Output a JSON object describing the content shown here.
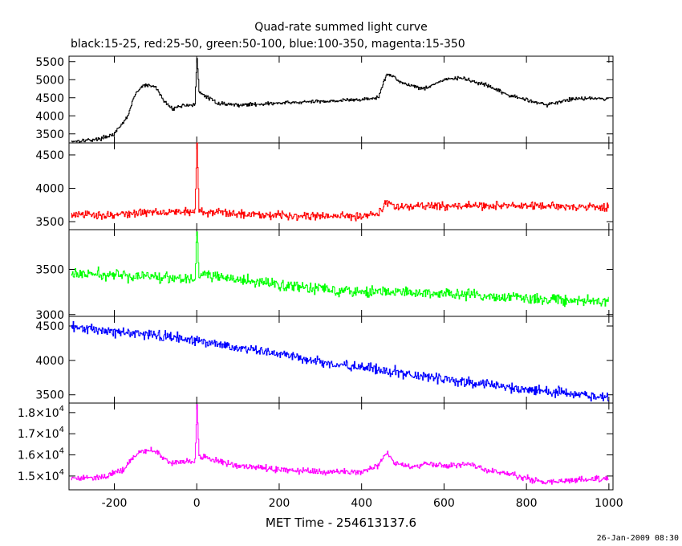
{
  "title": "Quad-rate summed light curve",
  "subtitle": "black:15-25, red:25-50, green:50-100, blue:100-350, magenta:15-350",
  "timestamp": "26-Jan-2009 08:30",
  "chart_data": {
    "type": "line",
    "title": "Quad-rate summed light curve",
    "subtitle": "black:15-25, red:25-50, green:50-100, blue:100-350, magenta:15-350",
    "xlabel": "MET Time - 254613137.6",
    "xlim": [
      -310,
      1010
    ],
    "xticks": [
      -200,
      0,
      200,
      400,
      600,
      800,
      1000
    ],
    "xtick_labels": [
      "-200",
      "0",
      "200",
      "400",
      "600",
      "800",
      "1000"
    ],
    "grid": false,
    "panels": [
      {
        "name": "15-25",
        "color": "#000000",
        "ylim": [
          3250,
          5650
        ],
        "yticks": [
          3500,
          4000,
          4500,
          5000,
          5500
        ],
        "ytick_labels": [
          "3500",
          "4000",
          "4500",
          "5000",
          "5500"
        ],
        "noise": 45,
        "x": [
          -300,
          -240,
          -200,
          -170,
          -150,
          -130,
          -100,
          -80,
          -60,
          -30,
          -5,
          0,
          5,
          20,
          50,
          100,
          200,
          300,
          400,
          440,
          460,
          475,
          500,
          550,
          600,
          640,
          700,
          760,
          800,
          850,
          900,
          950,
          1000
        ],
        "y": [
          3300,
          3350,
          3500,
          3950,
          4600,
          4850,
          4800,
          4400,
          4200,
          4300,
          4300,
          5600,
          4650,
          4550,
          4350,
          4300,
          4350,
          4400,
          4450,
          4500,
          5150,
          5100,
          4900,
          4750,
          5000,
          5050,
          4850,
          4550,
          4450,
          4300,
          4450,
          4500,
          4450
        ]
      },
      {
        "name": "25-50",
        "color": "#ff0000",
        "ylim": [
          3380,
          4680
        ],
        "yticks": [
          3500,
          4000,
          4500
        ],
        "ytick_labels": [
          "3500",
          "4000",
          "4500"
        ],
        "noise": 55,
        "x": [
          -300,
          -200,
          -100,
          -5,
          0,
          5,
          100,
          200,
          300,
          400,
          440,
          460,
          480,
          550,
          700,
          1000
        ],
        "y": [
          3600,
          3600,
          3650,
          3650,
          4650,
          3650,
          3620,
          3600,
          3580,
          3590,
          3620,
          3800,
          3720,
          3730,
          3740,
          3720
        ]
      },
      {
        "name": "50-100",
        "color": "#00ff00",
        "ylim": [
          2980,
          3940
        ],
        "yticks": [
          3000,
          3500
        ],
        "ytick_labels": [
          "3000",
          "3500"
        ],
        "noise": 55,
        "x": [
          -300,
          -100,
          -5,
          0,
          5,
          100,
          200,
          300,
          400,
          600,
          800,
          1000
        ],
        "y": [
          3450,
          3420,
          3400,
          3920,
          3450,
          3380,
          3330,
          3290,
          3260,
          3230,
          3180,
          3140
        ]
      },
      {
        "name": "100-350",
        "color": "#0000ff",
        "ylim": [
          3380,
          4640
        ],
        "yticks": [
          3500,
          4000,
          4500
        ],
        "ytick_labels": [
          "3500",
          "4000",
          "4500"
        ],
        "noise": 65,
        "x": [
          -300,
          -200,
          -100,
          0,
          100,
          200,
          300,
          400,
          500,
          600,
          700,
          800,
          900,
          1000
        ],
        "y": [
          4470,
          4420,
          4370,
          4280,
          4190,
          4090,
          3970,
          3900,
          3810,
          3730,
          3650,
          3580,
          3520,
          3460
        ]
      },
      {
        "name": "15-350",
        "color": "#ff00ff",
        "ylim": [
          14350,
          18450
        ],
        "yticks": [
          15000,
          16000,
          17000,
          18000
        ],
        "ytick_labels": [
          "1.5×10",
          "1.6×10",
          "1.7×10",
          "1.8×10"
        ],
        "ytick_exponent": "4",
        "noise": 130,
        "x": [
          -300,
          -220,
          -180,
          -140,
          -100,
          -80,
          -60,
          -30,
          -5,
          0,
          5,
          50,
          100,
          200,
          300,
          400,
          440,
          460,
          480,
          520,
          560,
          600,
          650,
          700,
          800,
          850,
          900,
          1000
        ],
        "y": [
          14900,
          15000,
          15300,
          16200,
          16200,
          15800,
          15600,
          15700,
          15700,
          18400,
          15900,
          15700,
          15500,
          15300,
          15200,
          15200,
          15500,
          16100,
          15600,
          15400,
          15600,
          15500,
          15600,
          15300,
          14900,
          14700,
          14800,
          14900
        ]
      }
    ]
  }
}
